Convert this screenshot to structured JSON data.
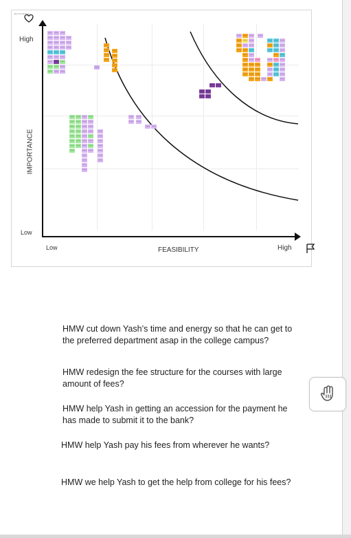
{
  "matrix": {
    "y_high": "High",
    "y_low": "Low",
    "x_low": "Low",
    "x_high": "High",
    "y_axis_title": "IMPORTANCE",
    "x_axis_title": "FEASIBILITY",
    "icons": {
      "top": "heart-icon",
      "right": "flag-icon"
    }
  },
  "hmw_items": [
    "HMW cut down Yash’s time and energy so that he can get to the preferred department asap in the college campus?",
    "HMW redesign the fee structure for the courses with large amount of fees?",
    "HMW help Yash in getting an accession for the payment he has made to submit it to the bank?",
    "HMW help Yash pay his fees from wherever he wants?",
    "HMW we help Yash to get the help from college for his fees?"
  ],
  "side_action": {
    "icon": "hand-icon"
  },
  "colors": {
    "axis": "#111111",
    "purple_note": "#d7b5f2",
    "green_note": "#9fe79a",
    "orange_note": "#f6a61c",
    "cyan_note": "#5cc9dd",
    "dark_purple_note": "#7d3f9d",
    "pink_note": "#f7a0cc",
    "yellow_note": "#f6df63"
  }
}
